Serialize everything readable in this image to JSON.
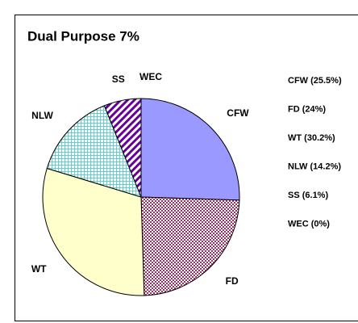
{
  "chart_data": {
    "type": "pie",
    "title": "Dual Purpose 7%",
    "categories": [
      "CFW",
      "FD",
      "WT",
      "NLW",
      "SS",
      "WEC"
    ],
    "values": [
      25.5,
      24,
      30.2,
      14.2,
      6.1,
      0
    ],
    "value_labels": [
      "CFW (25.5%)",
      "FD (24%)",
      "WT (30.2%)",
      "NLW (14.2%)",
      "SS (6.1%)",
      "WEC (0%)"
    ],
    "fills": [
      {
        "color": "#9999ff"
      },
      {
        "color": "#993366",
        "pattern": "checker"
      },
      {
        "color": "#ffffcc"
      },
      {
        "color": "#66cccc",
        "pattern": "grid"
      },
      {
        "color": "#660099",
        "pattern": "diagonal"
      },
      {
        "color": "#ffffff"
      }
    ],
    "legend": "right"
  }
}
